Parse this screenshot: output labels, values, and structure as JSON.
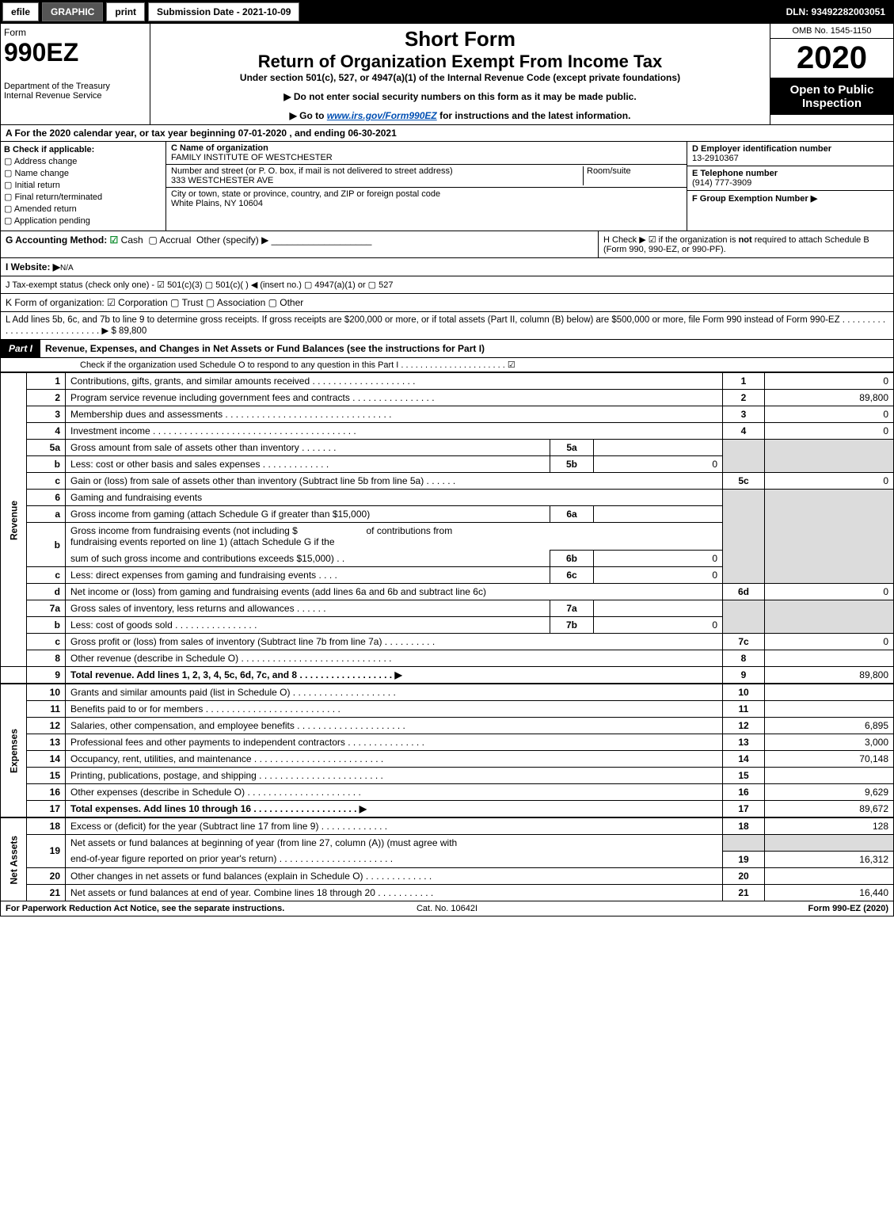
{
  "topbar": {
    "efile": "efile",
    "graphic": "GRAPHIC",
    "print": "print",
    "submission": "Submission Date - 2021-10-09",
    "dln": "DLN: 93492282003051"
  },
  "header": {
    "form_label": "Form",
    "form_number": "990EZ",
    "dept1": "Department of the Treasury",
    "dept2": "Internal Revenue Service",
    "short_form": "Short Form",
    "return_title": "Return of Organization Exempt From Income Tax",
    "under": "Under section 501(c), 527, or 4947(a)(1) of the Internal Revenue Code (except private foundations)",
    "arrow1": "▶ Do not enter social security numbers on this form as it may be made public.",
    "arrow2_pre": "▶ Go to ",
    "arrow2_link": "www.irs.gov/Form990EZ",
    "arrow2_post": " for instructions and the latest information.",
    "omb": "OMB No. 1545-1150",
    "year": "2020",
    "open": "Open to Public Inspection"
  },
  "line_a": "A For the 2020 calendar year, or tax year beginning 07-01-2020 , and ending 06-30-2021",
  "b": {
    "title": "B  Check if applicable:",
    "opts": [
      "Address change",
      "Name change",
      "Initial return",
      "Final return/terminated",
      "Amended return",
      "Application pending"
    ]
  },
  "c": {
    "name_label": "C Name of organization",
    "name": "FAMILY INSTITUTE OF WESTCHESTER",
    "street_label": "Number and street (or P. O. box, if mail is not delivered to street address)",
    "street": "333 WESTCHESTER AVE",
    "room_label": "Room/suite",
    "city_label": "City or town, state or province, country, and ZIP or foreign postal code",
    "city": "White Plains, NY  10604"
  },
  "d": {
    "ein_label": "D Employer identification number",
    "ein": "13-2910367",
    "tel_label": "E Telephone number",
    "tel": "(914) 777-3909",
    "grp_label": "F Group Exemption Number  ▶"
  },
  "g": {
    "label": "G Accounting Method:",
    "cash": "Cash",
    "accrual": "Accrual",
    "other": "Other (specify) ▶",
    "h_text1": "H  Check ▶ ☑ if the organization is ",
    "h_not": "not",
    "h_text2": " required to attach Schedule B",
    "h_text3": "(Form 990, 990-EZ, or 990-PF)."
  },
  "i": {
    "label": "I Website: ▶",
    "val": "N/A"
  },
  "j": "J Tax-exempt status (check only one) - ☑ 501(c)(3) ▢ 501(c)(  ) ◀ (insert no.) ▢ 4947(a)(1) or ▢ 527",
  "k": "K Form of organization:  ☑ Corporation  ▢ Trust  ▢ Association  ▢ Other",
  "l": {
    "text": "L Add lines 5b, 6c, and 7b to line 9 to determine gross receipts. If gross receipts are $200,000 or more, or if total assets (Part II, column (B) below) are $500,000 or more, file Form 990 instead of Form 990-EZ . . . . . . . . . . . . . . . . . . . . . . . . . . . .   ▶ $ 89,800"
  },
  "part1": {
    "tag": "Part I",
    "title": "Revenue, Expenses, and Changes in Net Assets or Fund Balances (see the instructions for Part I)",
    "check": "Check if the organization used Schedule O to respond to any question in this Part I . . . . . . . . . . . . . . . . . . . . . .    ☑"
  },
  "revenue": {
    "side": "Revenue",
    "rows": {
      "1": {
        "desc": "Contributions, gifts, grants, and similar amounts received . . . . . . . . . . . . . . . . . . . .",
        "box": "1",
        "val": "0"
      },
      "2": {
        "desc": "Program service revenue including government fees and contracts . . . . . . . . . . . . . . . .",
        "box": "2",
        "val": "89,800"
      },
      "3": {
        "desc": "Membership dues and assessments . . . . . . . . . . . . . . . . . . . . . . . . . . . . . . . .",
        "box": "3",
        "val": "0"
      },
      "4": {
        "desc": "Investment income . . . . . . . . . . . . . . . . . . . . . . . . . . . . . . . . . . . . . . .",
        "box": "4",
        "val": "0"
      },
      "5a": {
        "desc": "Gross amount from sale of assets other than inventory . . . . . . .",
        "sub": "5a",
        "subval": ""
      },
      "5b": {
        "desc": "Less: cost or other basis and sales expenses . . . . . . . . . . . . .",
        "sub": "5b",
        "subval": "0"
      },
      "5c": {
        "desc": "Gain or (loss) from sale of assets other than inventory (Subtract line 5b from line 5a) . . . . . .",
        "box": "5c",
        "val": "0"
      },
      "6": {
        "desc": "Gaming and fundraising events"
      },
      "6a": {
        "desc": "Gross income from gaming (attach Schedule G if greater than $15,000)",
        "sub": "6a",
        "subval": ""
      },
      "6b": {
        "desc_pre": "Gross income from fundraising events (not including $",
        "desc_mid": "of contributions from",
        "desc2": "fundraising events reported on line 1) (attach Schedule G if the",
        "desc3": "sum of such gross income and contributions exceeds $15,000)   . .",
        "sub": "6b",
        "subval": "0"
      },
      "6c": {
        "desc": "Less: direct expenses from gaming and fundraising events   . . . .",
        "sub": "6c",
        "subval": "0"
      },
      "6d": {
        "desc": "Net income or (loss) from gaming and fundraising events (add lines 6a and 6b and subtract line 6c)",
        "box": "6d",
        "val": "0"
      },
      "7a": {
        "desc": "Gross sales of inventory, less returns and allowances . . . . . .",
        "sub": "7a",
        "subval": ""
      },
      "7b": {
        "desc": "Less: cost of goods sold      . . . . . . . . . . . . . . . .",
        "sub": "7b",
        "subval": "0"
      },
      "7c": {
        "desc": "Gross profit or (loss) from sales of inventory (Subtract line 7b from line 7a) . . . . . . . . . .",
        "box": "7c",
        "val": "0"
      },
      "8": {
        "desc": "Other revenue (describe in Schedule O) . . . . . . . . . . . . . . . . . . . . . . . . . . . . .",
        "box": "8",
        "val": ""
      },
      "9": {
        "desc": "Total revenue. Add lines 1, 2, 3, 4, 5c, 6d, 7c, and 8  . . . . . . . . . . . . . . . . . .    ▶",
        "box": "9",
        "val": "89,800",
        "bold": true
      }
    }
  },
  "expenses": {
    "side": "Expenses",
    "rows": {
      "10": {
        "desc": "Grants and similar amounts paid (list in Schedule O) . . . . . . . . . . . . . . . . . . . .",
        "box": "10",
        "val": ""
      },
      "11": {
        "desc": "Benefits paid to or for members     . . . . . . . . . . . . . . . . . . . . . . . . . .",
        "box": "11",
        "val": ""
      },
      "12": {
        "desc": "Salaries, other compensation, and employee benefits . . . . . . . . . . . . . . . . . . . . .",
        "box": "12",
        "val": "6,895"
      },
      "13": {
        "desc": "Professional fees and other payments to independent contractors . . . . . . . . . . . . . . .",
        "box": "13",
        "val": "3,000"
      },
      "14": {
        "desc": "Occupancy, rent, utilities, and maintenance . . . . . . . . . . . . . . . . . . . . . . . . .",
        "box": "14",
        "val": "70,148"
      },
      "15": {
        "desc": "Printing, publications, postage, and shipping . . . . . . . . . . . . . . . . . . . . . . . .",
        "box": "15",
        "val": ""
      },
      "16": {
        "desc": "Other expenses (describe in Schedule O)     . . . . . . . . . . . . . . . . . . . . . .",
        "box": "16",
        "val": "9,629"
      },
      "17": {
        "desc": "Total expenses. Add lines 10 through 16     . . . . . . . . . . . . . . . . . . . .  ▶",
        "box": "17",
        "val": "89,672",
        "bold": true
      }
    }
  },
  "netassets": {
    "side": "Net Assets",
    "rows": {
      "18": {
        "desc": "Excess or (deficit) for the year (Subtract line 17 from line 9)       . . . . . . . . . . . . .",
        "box": "18",
        "val": "128"
      },
      "19": {
        "desc": "Net assets or fund balances at beginning of year (from line 27, column (A)) (must agree with",
        "desc2": "end-of-year figure reported on prior year's return) . . . . . . . . . . . . . . . . . . . . . .",
        "box": "19",
        "val": "16,312"
      },
      "20": {
        "desc": "Other changes in net assets or fund balances (explain in Schedule O) . . . . . . . . . . . . .",
        "box": "20",
        "val": ""
      },
      "21": {
        "desc": "Net assets or fund balances at end of year. Combine lines 18 through 20 . . . . . . . . . . .",
        "box": "21",
        "val": "16,440"
      }
    }
  },
  "footer": {
    "left": "For Paperwork Reduction Act Notice, see the separate instructions.",
    "mid": "Cat. No. 10642I",
    "right_pre": "Form ",
    "right_bold": "990-EZ",
    "right_post": " (2020)"
  }
}
